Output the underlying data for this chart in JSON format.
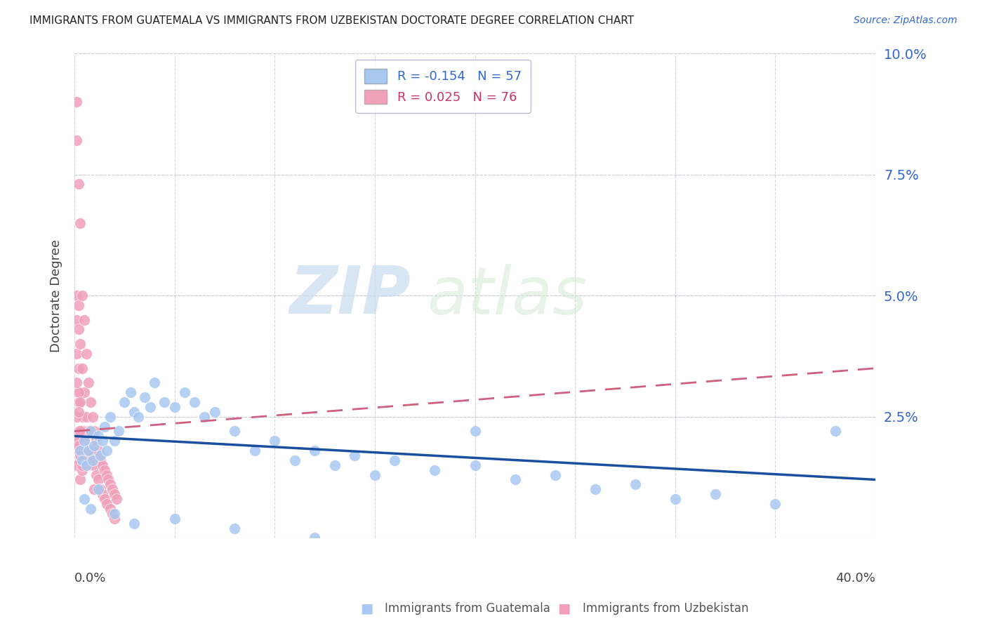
{
  "title": "IMMIGRANTS FROM GUATEMALA VS IMMIGRANTS FROM UZBEKISTAN DOCTORATE DEGREE CORRELATION CHART",
  "source": "Source: ZipAtlas.com",
  "ylabel": "Doctorate Degree",
  "legend_blue_r": "-0.154",
  "legend_blue_n": "57",
  "legend_pink_r": "0.025",
  "legend_pink_n": "76",
  "blue_color": "#A8C8F0",
  "pink_color": "#F0A0B8",
  "blue_line_color": "#1A4FA0",
  "pink_line_color": "#D06080",
  "watermark_zip": "ZIP",
  "watermark_atlas": "atlas",
  "blue_scatter_x": [
    0.003,
    0.004,
    0.005,
    0.006,
    0.007,
    0.008,
    0.009,
    0.01,
    0.012,
    0.013,
    0.014,
    0.015,
    0.016,
    0.018,
    0.02,
    0.022,
    0.025,
    0.028,
    0.03,
    0.032,
    0.035,
    0.038,
    0.04,
    0.045,
    0.05,
    0.055,
    0.06,
    0.065,
    0.07,
    0.08,
    0.09,
    0.1,
    0.11,
    0.12,
    0.13,
    0.14,
    0.15,
    0.16,
    0.18,
    0.2,
    0.22,
    0.24,
    0.26,
    0.28,
    0.3,
    0.32,
    0.35,
    0.38,
    0.005,
    0.008,
    0.012,
    0.02,
    0.03,
    0.05,
    0.08,
    0.12,
    0.2
  ],
  "blue_scatter_y": [
    0.018,
    0.016,
    0.02,
    0.015,
    0.018,
    0.022,
    0.016,
    0.019,
    0.021,
    0.017,
    0.02,
    0.023,
    0.018,
    0.025,
    0.02,
    0.022,
    0.028,
    0.03,
    0.026,
    0.025,
    0.029,
    0.027,
    0.032,
    0.028,
    0.027,
    0.03,
    0.028,
    0.025,
    0.026,
    0.022,
    0.018,
    0.02,
    0.016,
    0.018,
    0.015,
    0.017,
    0.013,
    0.016,
    0.014,
    0.015,
    0.012,
    0.013,
    0.01,
    0.011,
    0.008,
    0.009,
    0.007,
    0.022,
    0.008,
    0.006,
    0.01,
    0.005,
    0.003,
    0.004,
    0.002,
    0.0,
    0.022
  ],
  "pink_scatter_x": [
    0.001,
    0.001,
    0.001,
    0.001,
    0.001,
    0.001,
    0.002,
    0.002,
    0.002,
    0.002,
    0.002,
    0.002,
    0.002,
    0.003,
    0.003,
    0.003,
    0.003,
    0.003,
    0.003,
    0.004,
    0.004,
    0.004,
    0.004,
    0.005,
    0.005,
    0.005,
    0.005,
    0.006,
    0.006,
    0.006,
    0.007,
    0.007,
    0.007,
    0.008,
    0.008,
    0.009,
    0.009,
    0.01,
    0.01,
    0.01,
    0.011,
    0.011,
    0.012,
    0.012,
    0.013,
    0.013,
    0.014,
    0.014,
    0.015,
    0.015,
    0.016,
    0.016,
    0.017,
    0.018,
    0.018,
    0.019,
    0.019,
    0.02,
    0.02,
    0.021,
    0.001,
    0.001,
    0.002,
    0.002,
    0.003,
    0.003,
    0.004,
    0.004,
    0.005,
    0.006,
    0.001,
    0.002,
    0.003,
    0.002,
    0.003,
    0.004
  ],
  "pink_scatter_y": [
    0.09,
    0.082,
    0.05,
    0.045,
    0.038,
    0.02,
    0.073,
    0.048,
    0.043,
    0.035,
    0.028,
    0.022,
    0.018,
    0.065,
    0.04,
    0.03,
    0.022,
    0.016,
    0.012,
    0.05,
    0.035,
    0.025,
    0.018,
    0.045,
    0.03,
    0.022,
    0.015,
    0.038,
    0.025,
    0.018,
    0.032,
    0.022,
    0.015,
    0.028,
    0.018,
    0.025,
    0.016,
    0.022,
    0.015,
    0.01,
    0.02,
    0.013,
    0.018,
    0.012,
    0.016,
    0.01,
    0.015,
    0.009,
    0.014,
    0.008,
    0.013,
    0.007,
    0.012,
    0.011,
    0.006,
    0.01,
    0.005,
    0.009,
    0.004,
    0.008,
    0.025,
    0.015,
    0.03,
    0.02,
    0.028,
    0.018,
    0.022,
    0.014,
    0.02,
    0.016,
    0.032,
    0.026,
    0.022,
    0.019,
    0.017,
    0.015
  ],
  "blue_line_x": [
    0.0,
    0.4
  ],
  "blue_line_y": [
    0.021,
    0.012
  ],
  "pink_line_x": [
    0.0,
    0.4
  ],
  "pink_line_y": [
    0.022,
    0.035
  ],
  "xlim": [
    0.0,
    0.4
  ],
  "ylim": [
    0.0,
    0.1
  ],
  "yticks": [
    0.0,
    0.025,
    0.05,
    0.075,
    0.1
  ],
  "ytick_labels": [
    "",
    "2.5%",
    "5.0%",
    "7.5%",
    "10.0%"
  ]
}
